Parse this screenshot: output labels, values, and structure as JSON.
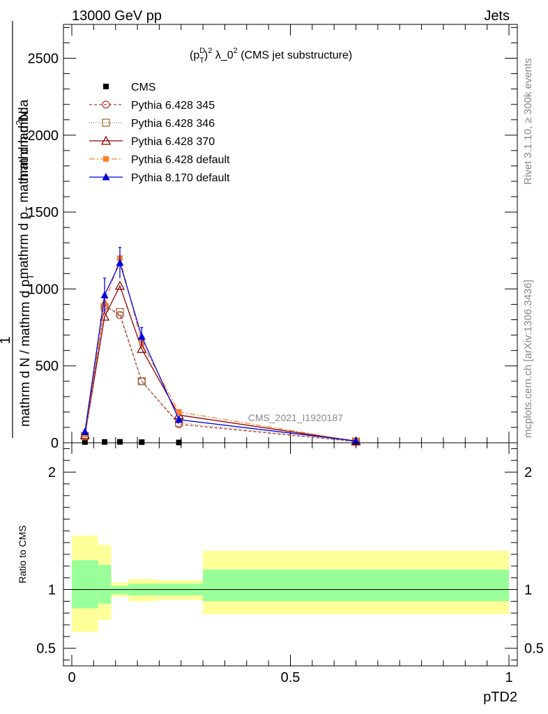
{
  "header": {
    "left": "13000 GeV pp",
    "right": "Jets"
  },
  "side": {
    "rivet": "Rivet 3.1.10, ≥ 300k events",
    "mcplots": "mcplots.cern.ch [arXiv:1306.3436]"
  },
  "watermark": "CMS_2021_I1920187",
  "chart_data": [
    {
      "type": "line",
      "title": "(p_T^D)^2 λ_0^2 (CMS jet substructure)",
      "title_parts": {
        "p": "(p",
        "sup_d": "D",
        "sub_t": "T",
        "close": ")",
        "sup_2": "2",
        "lambda": " λ_0",
        "sup_2b": "2",
        "rest": " (CMS jet substructure)"
      },
      "ylabel": "1 / (mathrm d N / mathrm d p_T) · mathrm d^2N / (mathrm d p_T mathrm d lambda)",
      "ylabel_parts": {
        "one": "1",
        "den": "mathrm d N / mathrm d p",
        "den_sub": "T",
        "num_a": "mathrm d",
        "num_sup": "2",
        "num_b": "N",
        "den2_a": "mathrm d p",
        "den2_sub": "T",
        "den2_b": " mathrm d lambda"
      },
      "xlabel": "pTD2",
      "xlim": [
        0,
        1
      ],
      "ylim": [
        0,
        2720
      ],
      "yticks": [
        0,
        500,
        1000,
        1500,
        2000,
        2500
      ],
      "ytick_labels": [
        "0",
        "500",
        "1000",
        "1500",
        "2000",
        "2500"
      ],
      "legend_position": "top-left",
      "x": [
        0.03,
        0.075,
        0.11,
        0.16,
        0.245,
        0.65
      ],
      "series": [
        {
          "name": "CMS",
          "color": "#000000",
          "marker": "square",
          "dash": "none",
          "values": [
            5,
            5,
            6,
            4,
            2,
            0.3
          ]
        },
        {
          "name": "Pythia 6.428 345",
          "color": "#b03a3a",
          "marker": "circle-open",
          "dash": "4,3",
          "values": [
            40,
            890,
            830,
            400,
            120,
            8
          ]
        },
        {
          "name": "Pythia 6.428 346",
          "color": "#a0703a",
          "marker": "square-open",
          "dash": "1,2",
          "values": [
            45,
            880,
            850,
            400,
            130,
            8
          ]
        },
        {
          "name": "Pythia 6.428 370",
          "color": "#8b0000",
          "marker": "triangle-open",
          "dash": "none",
          "values": [
            50,
            820,
            1020,
            610,
            180,
            10
          ]
        },
        {
          "name": "Pythia 6.428 default",
          "color": "#ff7f2a",
          "marker": "square",
          "dash": "8,3,2,3",
          "values": [
            55,
            900,
            1200,
            650,
            200,
            10
          ]
        },
        {
          "name": "Pythia 8.170 default",
          "color": "#0000dd",
          "marker": "triangle",
          "dash": "none",
          "values": [
            70,
            960,
            1170,
            690,
            150,
            12
          ],
          "errors": [
            15,
            110,
            100,
            60,
            20,
            3
          ]
        }
      ]
    },
    {
      "type": "area",
      "ylabel": "Ratio to CMS",
      "xlabel": "pTD2",
      "xlim": [
        0,
        1
      ],
      "ylim": [
        0.35,
        2.25
      ],
      "yticks": [
        0.5,
        1,
        2
      ],
      "ytick_labels": [
        "0.5",
        "1",
        "2"
      ],
      "xticks": [
        0,
        0.5,
        1
      ],
      "xtick_labels": [
        "0",
        "0.5",
        "1"
      ],
      "bins": [
        [
          0,
          0.06
        ],
        [
          0.06,
          0.09
        ],
        [
          0.09,
          0.13
        ],
        [
          0.13,
          0.19
        ],
        [
          0.19,
          0.3
        ],
        [
          0.3,
          1
        ]
      ],
      "bands": [
        {
          "name": "total uncertainty",
          "color": "#ffff99",
          "lo": [
            0.64,
            0.74,
            0.94,
            0.9,
            0.91,
            0.79
          ],
          "hi": [
            1.46,
            1.38,
            1.06,
            1.09,
            1.08,
            1.33
          ]
        },
        {
          "name": "statistical uncertainty",
          "color": "#99ff99",
          "lo": [
            0.84,
            0.88,
            0.96,
            0.95,
            0.95,
            0.9
          ],
          "hi": [
            1.25,
            1.21,
            1.03,
            1.05,
            1.05,
            1.17
          ]
        }
      ],
      "reference": 1
    }
  ]
}
